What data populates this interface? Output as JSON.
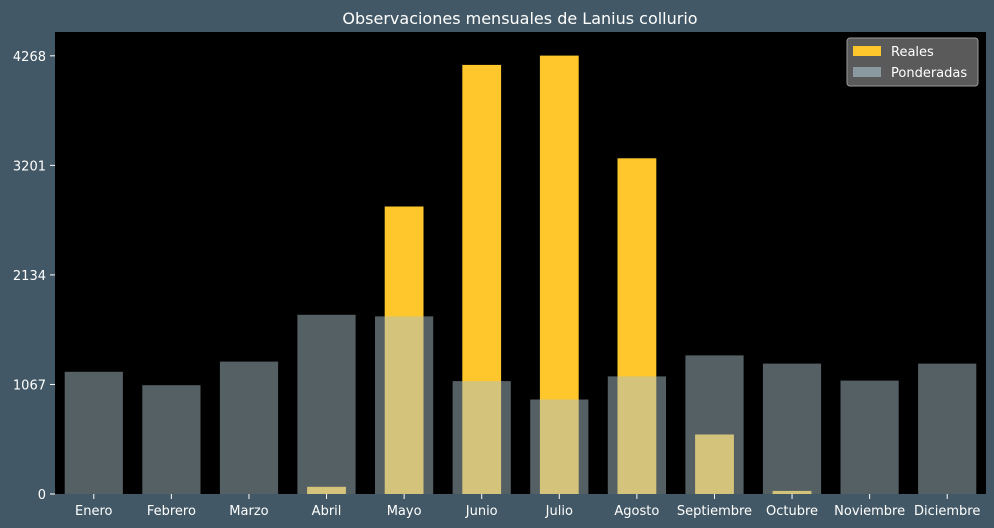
{
  "chart_data": {
    "type": "bar",
    "title": "Observaciones mensuales de Lanius collurio",
    "xlabel": "",
    "ylabel": "",
    "categories": [
      "Enero",
      "Febrero",
      "Marzo",
      "Abril",
      "Mayo",
      "Junio",
      "Julio",
      "Agosto",
      "Septiembre",
      "Octubre",
      "Noviembre",
      "Diciembre"
    ],
    "yticks": [
      0,
      1067,
      2134,
      3201,
      4268
    ],
    "ylim": [
      0,
      4500
    ],
    "series": [
      {
        "name": "Reales",
        "color": "#ffc72c",
        "opacity": 1,
        "values": [
          0,
          0,
          0,
          70,
          2800,
          4180,
          4270,
          3270,
          580,
          30,
          0,
          0
        ]
      },
      {
        "name": "Ponderadas",
        "color": "#a9c0c8",
        "opacity": 0.5,
        "values": [
          1190,
          1060,
          1290,
          1745,
          1730,
          1100,
          920,
          1145,
          1350,
          1270,
          1105,
          1270
        ]
      }
    ],
    "legend": "top-right",
    "grid": false
  },
  "colors": {
    "background": "#425866",
    "plot_background": "#000000",
    "text": "#ffffff"
  }
}
